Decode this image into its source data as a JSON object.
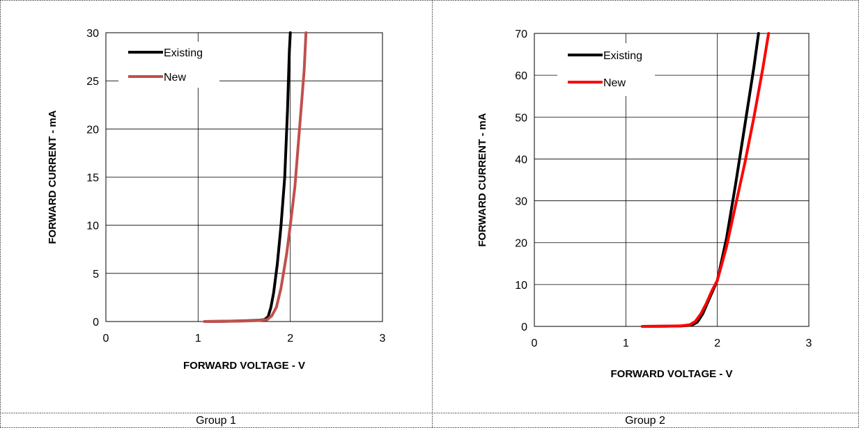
{
  "panels": [
    {
      "caption": "Group 1"
    },
    {
      "caption": "Group 2"
    }
  ],
  "chart_data": [
    {
      "type": "line",
      "title": "",
      "xlabel": "FORWARD VOLTAGE - V",
      "ylabel": "FORWARD CURRENT - mA",
      "xlim": [
        0,
        3
      ],
      "ylim": [
        0,
        30
      ],
      "xticks": [
        0,
        1,
        2,
        3
      ],
      "yticks": [
        0,
        5,
        10,
        15,
        20,
        25,
        30
      ],
      "grid": true,
      "legend_position": "top-left",
      "series": [
        {
          "name": "Existing",
          "color": "#000000",
          "x": [
            1.07,
            1.3,
            1.5,
            1.65,
            1.72,
            1.76,
            1.79,
            1.82,
            1.86,
            1.9,
            1.94,
            1.97,
            1.99,
            2.0
          ],
          "y": [
            0,
            0.03,
            0.07,
            0.12,
            0.2,
            0.5,
            1.5,
            3,
            6,
            10,
            15,
            22,
            28,
            30
          ]
        },
        {
          "name": "New",
          "color": "#C0504D",
          "x": [
            1.07,
            1.3,
            1.5,
            1.65,
            1.75,
            1.8,
            1.85,
            1.9,
            1.96,
            2.0,
            2.05,
            2.1,
            2.15,
            2.17
          ],
          "y": [
            0,
            0.02,
            0.05,
            0.1,
            0.2,
            0.6,
            1.5,
            3.5,
            7,
            10,
            14,
            20,
            26,
            30
          ]
        }
      ]
    },
    {
      "type": "line",
      "title": "",
      "xlabel": "FORWARD VOLTAGE - V",
      "ylabel": "FORWARD CURRENT - mA",
      "xlim": [
        0,
        3
      ],
      "ylim": [
        0,
        70
      ],
      "xticks": [
        0,
        1,
        2,
        3
      ],
      "yticks": [
        0,
        10,
        20,
        30,
        40,
        50,
        60,
        70
      ],
      "grid": true,
      "legend_position": "top-left",
      "series": [
        {
          "name": "Existing",
          "color": "#000000",
          "x": [
            1.18,
            1.4,
            1.6,
            1.72,
            1.78,
            1.84,
            1.9,
            1.96,
            2.0,
            2.1,
            2.2,
            2.3,
            2.4,
            2.45
          ],
          "y": [
            0,
            0.05,
            0.1,
            0.3,
            1,
            3,
            6,
            9,
            11,
            21,
            34,
            48,
            62,
            70
          ]
        },
        {
          "name": "New",
          "color": "#FF0000",
          "x": [
            1.18,
            1.4,
            1.6,
            1.7,
            1.76,
            1.82,
            1.88,
            1.94,
            2.0,
            2.1,
            2.2,
            2.3,
            2.4,
            2.5,
            2.56
          ],
          "y": [
            0,
            0.05,
            0.12,
            0.4,
            1.2,
            3,
            5.5,
            8.5,
            11,
            19,
            29,
            39,
            50,
            62,
            70
          ]
        }
      ]
    }
  ]
}
